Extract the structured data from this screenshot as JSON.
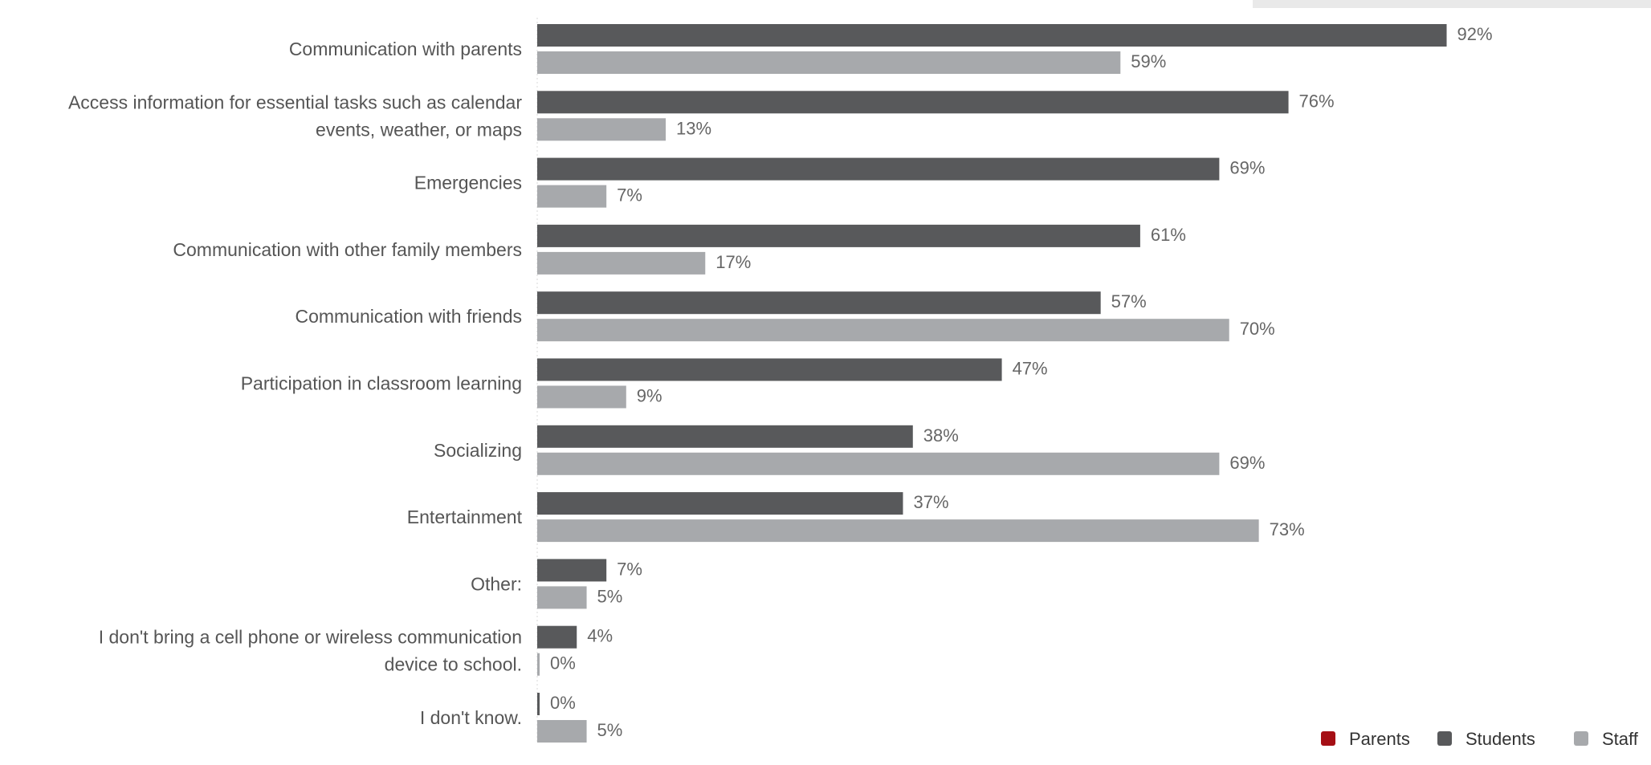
{
  "chart_data": {
    "type": "bar",
    "orientation": "horizontal",
    "categories": [
      "Communication with parents",
      "Access information for essential tasks such as calendar events, weather, or maps",
      "Emergencies",
      "Communication with other family members",
      "Communication with friends",
      "Participation in classroom learning",
      "Socializing",
      "Entertainment",
      "Other:",
      "I don't bring a cell phone or wireless communication device to school.",
      "I don't know."
    ],
    "category_lines": [
      [
        "Communication with parents"
      ],
      [
        "Access information for essential tasks such as calendar",
        "events, weather, or maps"
      ],
      [
        "Emergencies"
      ],
      [
        "Communication with other family members"
      ],
      [
        "Communication with friends"
      ],
      [
        "Participation in classroom learning"
      ],
      [
        "Socializing"
      ],
      [
        "Entertainment"
      ],
      [
        "Other:"
      ],
      [
        "I don't bring a cell phone or wireless communication",
        "device to school."
      ],
      [
        "I don't know."
      ]
    ],
    "series": [
      {
        "name": "Students",
        "color": "#58595b",
        "values": [
          92,
          76,
          69,
          61,
          57,
          47,
          38,
          37,
          7,
          4,
          0
        ]
      },
      {
        "name": "Staff",
        "color": "#a7a9ac",
        "values": [
          59,
          13,
          7,
          17,
          70,
          9,
          69,
          73,
          5,
          0,
          5
        ]
      }
    ],
    "value_suffix": "%",
    "xlim": [
      0,
      100
    ],
    "grid": false,
    "legend": {
      "placement": "bottom-right",
      "entries": [
        {
          "name": "Parents",
          "color": "#a50f15"
        },
        {
          "name": "Students",
          "color": "#58595b"
        },
        {
          "name": "Staff",
          "color": "#a7a9ac"
        }
      ]
    }
  }
}
